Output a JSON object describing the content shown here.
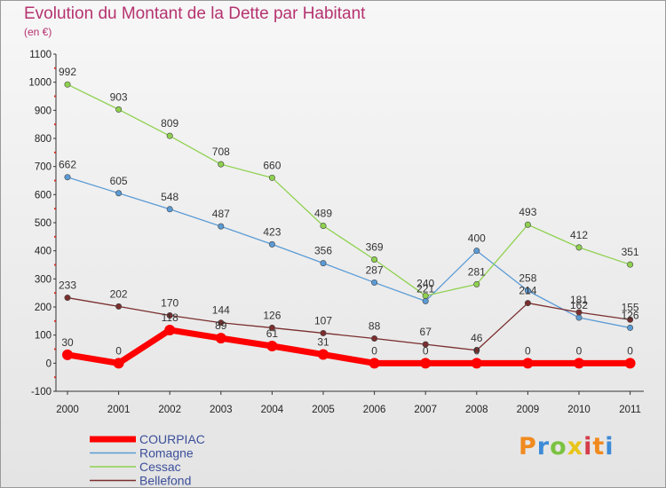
{
  "title": "Evolution du Montant de la Dette par Habitant",
  "unit": "(en €)",
  "logo_text": "Proxiti",
  "chart_data": {
    "type": "line",
    "title": "Evolution du Montant de la Dette par Habitant",
    "subtitle": "(en €)",
    "categories": [
      "2000",
      "2001",
      "2002",
      "2003",
      "2004",
      "2005",
      "2006",
      "2007",
      "2008",
      "2009",
      "2010",
      "2011"
    ],
    "ylim": [
      -100,
      1100
    ],
    "yticks": [
      -100,
      0,
      100,
      200,
      300,
      400,
      500,
      600,
      700,
      800,
      900,
      1000,
      1100
    ],
    "grid": false,
    "legend_position": "bottom-left",
    "series": [
      {
        "name": "COURPIAC",
        "color": "#ff0000",
        "values": [
          30,
          0,
          118,
          89,
          61,
          31,
          0,
          0,
          0,
          0,
          0,
          0
        ]
      },
      {
        "name": "Romagne",
        "color": "#5b9bd5",
        "values": [
          662,
          605,
          548,
          487,
          423,
          356,
          287,
          221,
          400,
          258,
          162,
          126
        ]
      },
      {
        "name": "Cessac",
        "color": "#8fd14f",
        "values": [
          992,
          903,
          809,
          708,
          660,
          489,
          369,
          240,
          281,
          493,
          412,
          351
        ]
      },
      {
        "name": "Bellefond",
        "color": "#7a2e2e",
        "values": [
          233,
          202,
          170,
          144,
          126,
          107,
          88,
          67,
          46,
          214,
          181,
          155
        ]
      }
    ]
  }
}
